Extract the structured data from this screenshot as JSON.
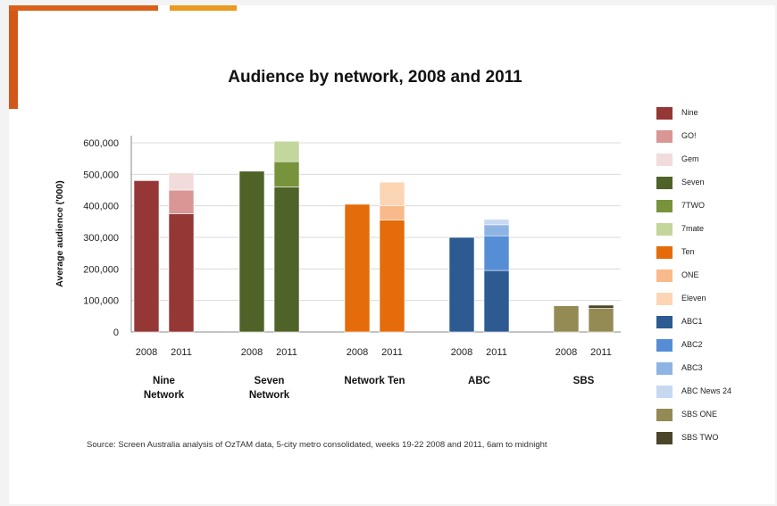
{
  "chart_data": {
    "type": "bar",
    "stacked": true,
    "title": "Audience by network, 2008 and 2011",
    "ylabel": "Average audience ('000)",
    "xlabel": "",
    "ylim": [
      0,
      600000
    ],
    "yticks": [
      "600,000",
      "500,000",
      "400,000",
      "300,000",
      "200,000",
      "100,000",
      "0"
    ],
    "ytick_values": [
      600000,
      500000,
      400000,
      300000,
      200000,
      100000,
      0
    ],
    "grid": true,
    "legend_position": "right",
    "groups": [
      {
        "name": "Nine Network",
        "name_lines": [
          "Nine",
          "Network"
        ],
        "bars": [
          {
            "year": "2008",
            "segments": [
              {
                "channel": "Nine",
                "value": 480000
              }
            ]
          },
          {
            "year": "2011",
            "segments": [
              {
                "channel": "Nine",
                "value": 375000
              },
              {
                "channel": "GO!",
                "value": 75000
              },
              {
                "channel": "Gem",
                "value": 55000
              }
            ]
          }
        ]
      },
      {
        "name": "Seven Network",
        "name_lines": [
          "Seven",
          "Network"
        ],
        "bars": [
          {
            "year": "2008",
            "segments": [
              {
                "channel": "Seven",
                "value": 510000
              }
            ]
          },
          {
            "year": "2011",
            "segments": [
              {
                "channel": "Seven",
                "value": 460000
              },
              {
                "channel": "7TWO",
                "value": 80000
              },
              {
                "channel": "7mate",
                "value": 65000
              }
            ]
          }
        ]
      },
      {
        "name": "Network Ten",
        "name_lines": [
          "Network Ten"
        ],
        "bars": [
          {
            "year": "2008",
            "segments": [
              {
                "channel": "Ten",
                "value": 405000
              }
            ]
          },
          {
            "year": "2011",
            "segments": [
              {
                "channel": "Ten",
                "value": 355000
              },
              {
                "channel": "ONE",
                "value": 45000
              },
              {
                "channel": "Eleven",
                "value": 75000
              }
            ]
          }
        ]
      },
      {
        "name": "ABC",
        "name_lines": [
          "ABC"
        ],
        "bars": [
          {
            "year": "2008",
            "segments": [
              {
                "channel": "ABC1",
                "value": 300000
              }
            ]
          },
          {
            "year": "2011",
            "segments": [
              {
                "channel": "ABC1",
                "value": 195000
              },
              {
                "channel": "ABC2",
                "value": 110000
              },
              {
                "channel": "ABC3",
                "value": 35000
              },
              {
                "channel": "ABC News 24",
                "value": 17000
              }
            ]
          }
        ]
      },
      {
        "name": "SBS",
        "name_lines": [
          "SBS"
        ],
        "bars": [
          {
            "year": "2008",
            "segments": [
              {
                "channel": "SBS ONE",
                "value": 83000
              }
            ]
          },
          {
            "year": "2011",
            "segments": [
              {
                "channel": "SBS ONE",
                "value": 75000
              },
              {
                "channel": "SBS TWO",
                "value": 10000
              }
            ]
          }
        ]
      }
    ],
    "legend": [
      {
        "label": "Nine",
        "color": "#953735"
      },
      {
        "label": "GO!",
        "color": "#d99694"
      },
      {
        "label": "Gem",
        "color": "#f2dcdb"
      },
      {
        "label": "Seven",
        "color": "#4f6228"
      },
      {
        "label": "7TWO",
        "color": "#77933c"
      },
      {
        "label": "7mate",
        "color": "#c3d69b"
      },
      {
        "label": "Ten",
        "color": "#e46c0a"
      },
      {
        "label": "ONE",
        "color": "#fab98a"
      },
      {
        "label": "Eleven",
        "color": "#fcd5b5"
      },
      {
        "label": "ABC1",
        "color": "#2c5a91"
      },
      {
        "label": "ABC2",
        "color": "#558ed5"
      },
      {
        "label": "ABC3",
        "color": "#8eb4e3"
      },
      {
        "label": "ABC News 24",
        "color": "#c6d9f1"
      },
      {
        "label": "SBS ONE",
        "color": "#948a54"
      },
      {
        "label": "SBS TWO",
        "color": "#4a452a"
      }
    ]
  },
  "source_text": "Source: Screen Australia analysis of OzTAM data, 5-city metro consolidated, weeks 19-22 2008 and 2011, 6am to midnight"
}
